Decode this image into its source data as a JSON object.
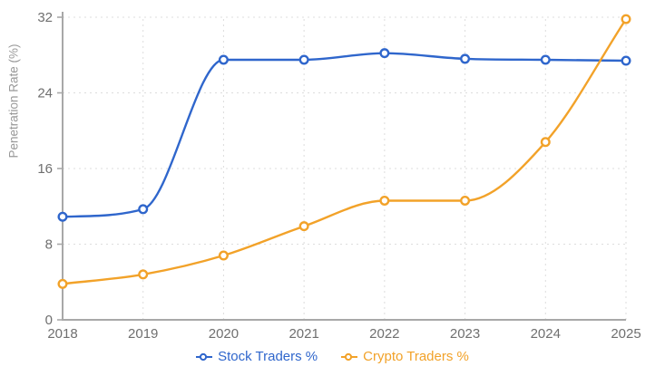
{
  "chart": {
    "y_axis_title": "Penetration Rate (%)"
  },
  "chart_data": {
    "type": "line",
    "title": "",
    "xlabel": "",
    "ylabel": "Penetration Rate (%)",
    "categories": [
      "2018",
      "2019",
      "2020",
      "2021",
      "2022",
      "2023",
      "2024",
      "2025"
    ],
    "series": [
      {
        "name": "Stock Traders %",
        "color": "#2f66cc",
        "values": [
          10.9,
          11.7,
          27.5,
          27.5,
          28.2,
          27.6,
          27.5,
          27.4
        ]
      },
      {
        "name": "Crypto Traders %",
        "color": "#f2a229",
        "values": [
          3.8,
          4.8,
          6.8,
          9.9,
          12.6,
          12.6,
          18.8,
          31.8
        ]
      }
    ],
    "ylim": [
      0,
      32
    ],
    "yticks": [
      0,
      8,
      16,
      24,
      32
    ],
    "grid": true,
    "line_style": "smooth",
    "marker": "open-circle",
    "legend_position": "bottom",
    "colors": {
      "axis": "#a8a8a8",
      "gridline": "#dddddd",
      "tick_label": "#6f6f6f",
      "axis_title": "#999999",
      "background": "#ffffff"
    }
  }
}
